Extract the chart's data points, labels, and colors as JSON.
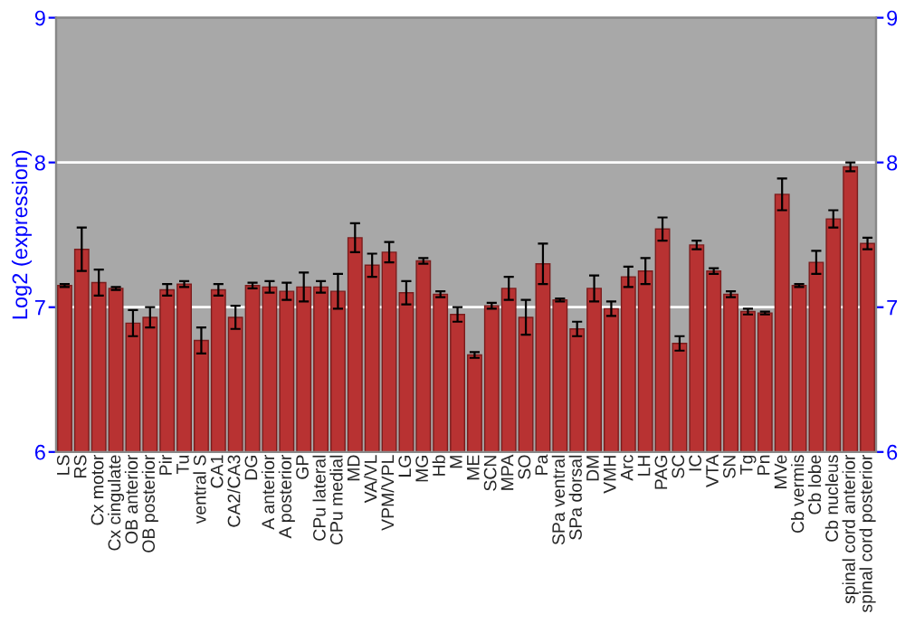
{
  "chart_data": {
    "type": "bar",
    "ylabel": "Log2 (expression)",
    "categories": [
      "LS",
      "RS",
      "Cx motor",
      "Cx cingulate",
      "OB anterior",
      "OB posterior",
      "Pir",
      "Tu",
      "ventral S",
      "CA1",
      "CA2/CA3",
      "DG",
      "A anterior",
      "A posterior",
      "GP",
      "CPu lateral",
      "CPu medial",
      "MD",
      "VA/VL",
      "VPM/VPL",
      "LG",
      "MG",
      "Hb",
      "M",
      "ME",
      "SCN",
      "MPA",
      "SO",
      "Pa",
      "SPa ventral",
      "SPa dorsal",
      "DM",
      "VMH",
      "Arc",
      "LH",
      "PAG",
      "SC",
      "IC",
      "VTA",
      "SN",
      "Tg",
      "Pn",
      "MVe",
      "Cb vermis",
      "Cb lobe",
      "Cb nucleus",
      "spinal cord anterior",
      "spinal cord posterior"
    ],
    "values": [
      7.15,
      7.4,
      7.17,
      7.13,
      6.89,
      6.93,
      7.12,
      7.16,
      6.77,
      7.12,
      6.93,
      7.15,
      7.14,
      7.11,
      7.14,
      7.14,
      7.11,
      7.48,
      7.29,
      7.38,
      7.1,
      7.32,
      7.09,
      6.95,
      6.67,
      7.01,
      7.13,
      6.93,
      7.3,
      7.05,
      6.85,
      7.13,
      6.99,
      7.21,
      7.25,
      7.54,
      6.75,
      7.43,
      7.25,
      7.09,
      6.97,
      6.96,
      7.78,
      7.15,
      7.31,
      7.61,
      7.97,
      7.44
    ],
    "errors": [
      0.01,
      0.15,
      0.09,
      0.01,
      0.09,
      0.07,
      0.04,
      0.02,
      0.09,
      0.04,
      0.08,
      0.02,
      0.04,
      0.06,
      0.1,
      0.04,
      0.12,
      0.1,
      0.08,
      0.07,
      0.08,
      0.02,
      0.02,
      0.05,
      0.02,
      0.02,
      0.08,
      0.12,
      0.14,
      0.01,
      0.05,
      0.09,
      0.05,
      0.07,
      0.09,
      0.08,
      0.05,
      0.03,
      0.02,
      0.02,
      0.02,
      0.01,
      0.11,
      0.01,
      0.08,
      0.06,
      0.03,
      0.04
    ],
    "color": "#b83232",
    "ylim": [
      6,
      9
    ],
    "yticks": [
      6,
      7,
      8,
      9
    ],
    "y2lim": [
      6,
      9
    ],
    "y2ticks": [
      6,
      7,
      8,
      9
    ],
    "grid": "y"
  }
}
